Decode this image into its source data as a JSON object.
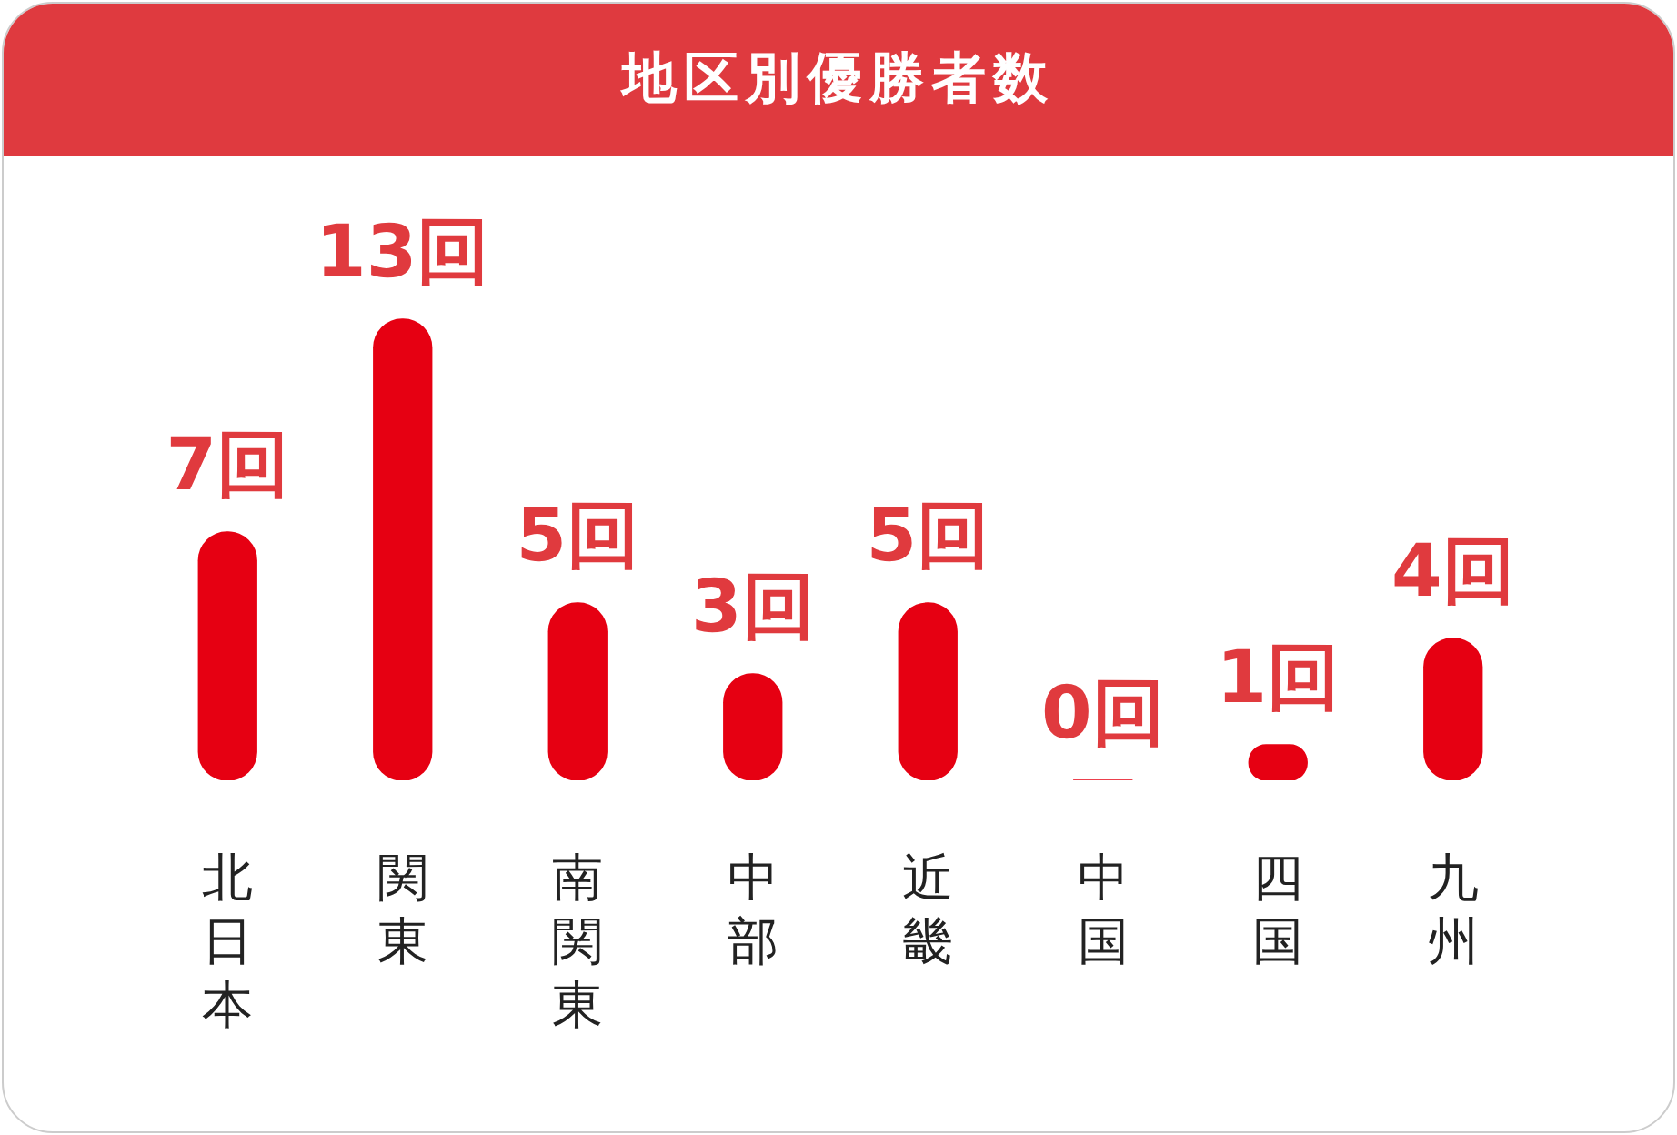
{
  "chart_data": {
    "type": "bar",
    "title": "地区別優勝者数",
    "categories": [
      "北日本",
      "関東",
      "南関東",
      "中部",
      "近畿",
      "中国",
      "四国",
      "九州"
    ],
    "values": [
      7,
      13,
      5,
      3,
      5,
      0,
      1,
      4
    ],
    "value_labels": [
      "7回",
      "13回",
      "5回",
      "3回",
      "5回",
      "0回",
      "1回",
      "4回"
    ],
    "color": "#e60012",
    "grid": false,
    "legend": false
  }
}
